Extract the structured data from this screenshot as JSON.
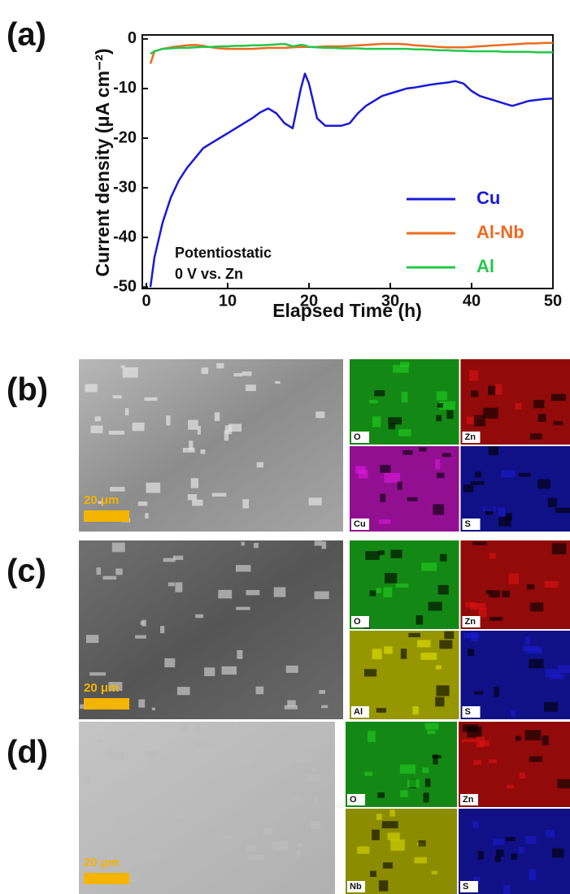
{
  "chart_data": {
    "type": "line",
    "panel_label": "(a)",
    "x_label": "Elapsed Time (h)",
    "y_label": "Current density (μA cm⁻²)",
    "annotation": [
      "Potentiostatic",
      "0 V vs. Zn"
    ],
    "xlim": [
      -0.5,
      50
    ],
    "xticks": [
      0,
      10,
      20,
      30,
      40,
      50
    ],
    "ylim": [
      -50.3,
      0.8
    ],
    "yticks": [
      0,
      -10,
      -20,
      -30,
      -40,
      -50
    ],
    "legend": "lower right",
    "x": [
      0.5,
      1,
      2,
      3,
      4,
      5,
      6,
      7,
      8,
      9,
      10,
      11,
      12,
      13,
      14,
      15,
      16,
      17,
      18,
      19,
      19.5,
      20,
      21,
      22,
      23,
      24,
      25,
      26,
      27,
      28,
      29,
      30,
      31,
      32,
      33,
      34,
      35,
      36,
      37,
      38,
      39,
      40,
      41,
      42,
      43,
      44,
      45,
      46,
      47,
      48,
      49,
      50
    ],
    "series": [
      {
        "name": "Cu",
        "color": "#1a1ad6",
        "values": [
          -50,
          -44,
          -37,
          -32,
          -28.5,
          -26,
          -24,
          -22,
          -21,
          -20,
          -19,
          -18,
          -17,
          -16,
          -14.8,
          -14,
          -15,
          -17,
          -18,
          -10,
          -7,
          -9,
          -16,
          -17.5,
          -17.5,
          -17.5,
          -17,
          -15,
          -13.5,
          -12.5,
          -11.5,
          -11,
          -10.5,
          -10,
          -9.8,
          -9.5,
          -9.2,
          -9,
          -8.8,
          -8.5,
          -9,
          -10.5,
          -11.5,
          -12,
          -12.5,
          -13,
          -13.5,
          -13,
          -12.5,
          -12.3,
          -12.1,
          -12
        ]
      },
      {
        "name": "Al-Nb",
        "color": "#ee6a1f",
        "values": [
          -5,
          -2.5,
          -2,
          -1.7,
          -1.5,
          -1.3,
          -1.2,
          -1.4,
          -1.7,
          -1.9,
          -2,
          -2,
          -2,
          -2,
          -1.9,
          -1.8,
          -1.8,
          -1.8,
          -1.7,
          -1.6,
          -1.6,
          -1.6,
          -1.6,
          -1.5,
          -1.5,
          -1.5,
          -1.4,
          -1.3,
          -1.2,
          -1.1,
          -1,
          -1,
          -1,
          -1.1,
          -1.3,
          -1.4,
          -1.5,
          -1.6,
          -1.7,
          -1.7,
          -1.7,
          -1.6,
          -1.5,
          -1.4,
          -1.3,
          -1.2,
          -1.1,
          -1,
          -0.9,
          -0.9,
          -0.8,
          -0.8
        ]
      },
      {
        "name": "Al",
        "color": "#22c84a",
        "values": [
          -3,
          -2.5,
          -2,
          -1.9,
          -1.8,
          -1.8,
          -1.7,
          -1.6,
          -1.6,
          -1.5,
          -1.5,
          -1.4,
          -1.4,
          -1.3,
          -1.3,
          -1.2,
          -1.1,
          -1,
          -1.5,
          -1.2,
          -1.3,
          -1.6,
          -1.7,
          -1.8,
          -1.8,
          -1.9,
          -1.9,
          -1.9,
          -2,
          -2,
          -2,
          -2,
          -2,
          -2,
          -2.1,
          -2.1,
          -2.2,
          -2.3,
          -2.3,
          -2.4,
          -2.4,
          -2.5,
          -2.5,
          -2.5,
          -2.5,
          -2.6,
          -2.6,
          -2.6,
          -2.6,
          -2.7,
          -2.7,
          -2.7
        ]
      }
    ]
  },
  "panels": [
    {
      "label": "(b)",
      "scale_bar": "20 μm",
      "maps": [
        "O",
        "Zn",
        "Cu",
        "S"
      ]
    },
    {
      "label": "(c)",
      "scale_bar": "20 μm",
      "maps": [
        "O",
        "Zn",
        "Al",
        "S"
      ]
    },
    {
      "label": "(d)",
      "scale_bar": "20 μm",
      "maps": [
        "O",
        "Zn",
        "Nb",
        "S"
      ]
    }
  ]
}
